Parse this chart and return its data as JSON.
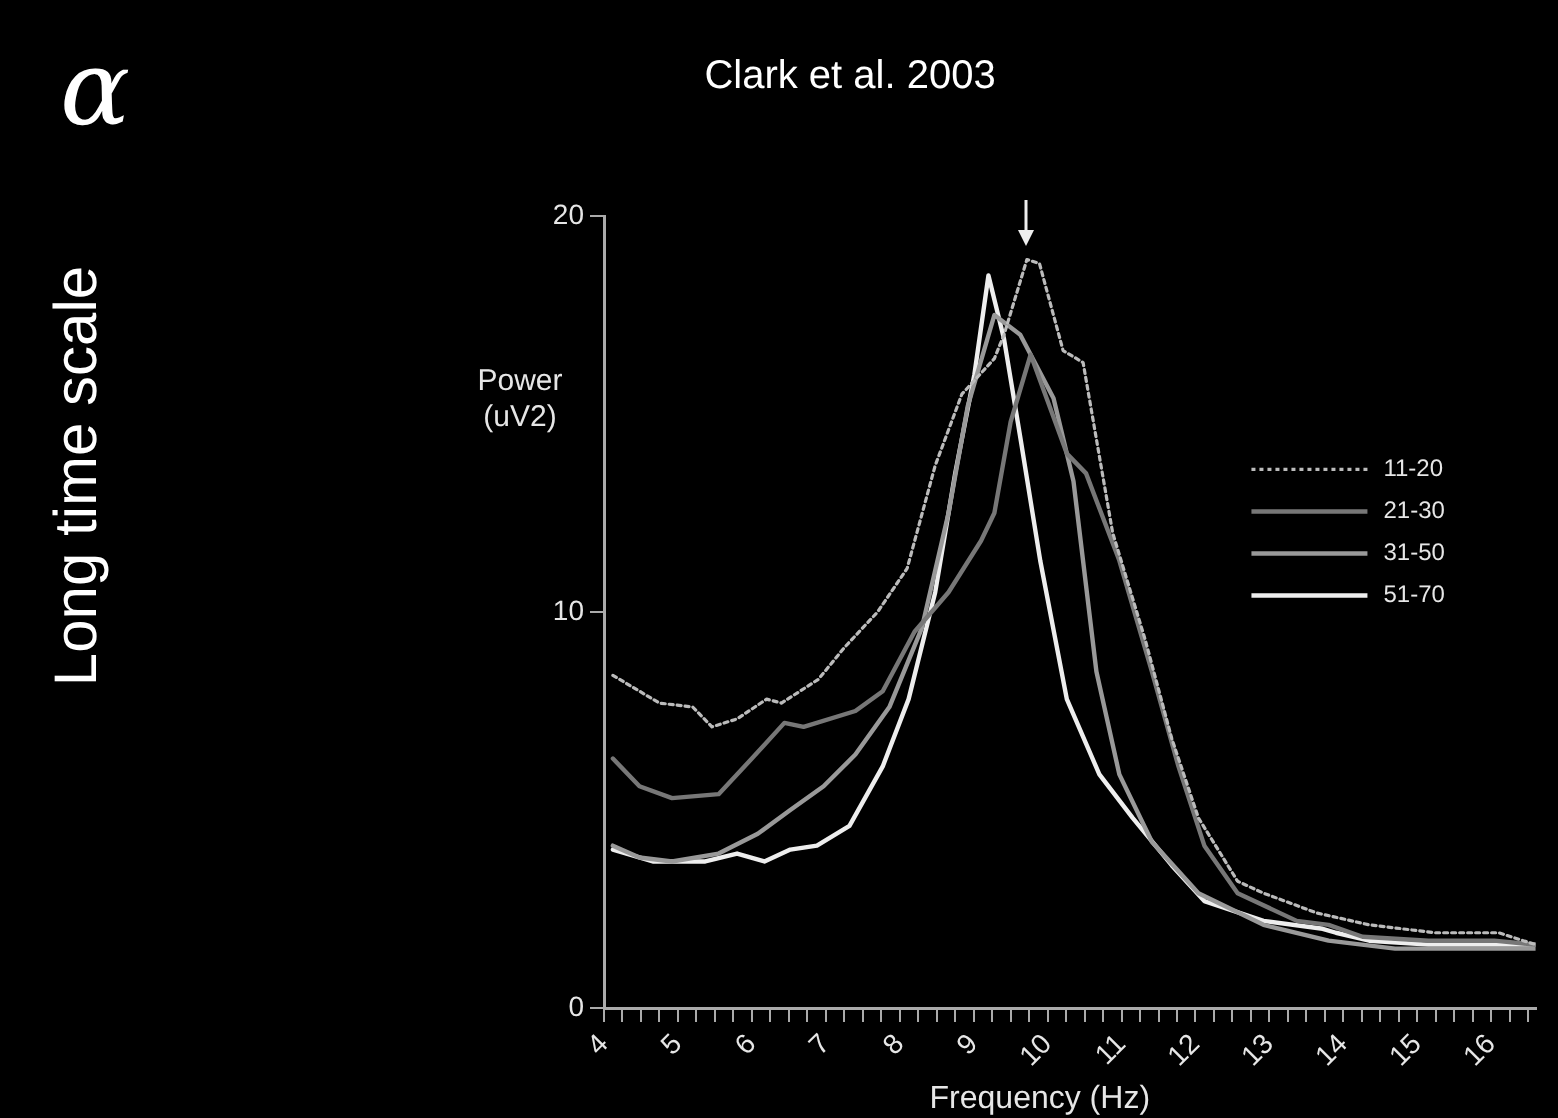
{
  "chart_data": {
    "type": "line",
    "title": "α",
    "xlabel": "Frequency (Hz)",
    "ylabel": "Power\n(uV2)",
    "annotations": [
      "Clark et al. 2003",
      "Long time scale"
    ],
    "xlim": [
      4,
      16.6
    ],
    "ylim": [
      0,
      20
    ],
    "yticks": [
      0,
      10,
      20
    ],
    "xticks": [
      4,
      {
        "value": 4.25,
        "label": null
      },
      {
        "value": 4.5,
        "label": null
      },
      {
        "value": 4.75,
        "label": null
      },
      5,
      {
        "value": 5.25,
        "label": null
      },
      {
        "value": 5.5,
        "label": null
      },
      {
        "value": 5.75,
        "label": null
      },
      6,
      {
        "value": 6.25,
        "label": null
      },
      {
        "value": 6.5,
        "label": null
      },
      {
        "value": 6.75,
        "label": null
      },
      7,
      {
        "value": 7.25,
        "label": null
      },
      {
        "value": 7.5,
        "label": null
      },
      {
        "value": 7.75,
        "label": null
      },
      8,
      {
        "value": 8.25,
        "label": null
      },
      {
        "value": 8.5,
        "label": null
      },
      {
        "value": 8.75,
        "label": null
      },
      9,
      {
        "value": 9.25,
        "label": null
      },
      {
        "value": 9.5,
        "label": null
      },
      {
        "value": 9.75,
        "label": null
      },
      10,
      {
        "value": 10.25,
        "label": null
      },
      {
        "value": 10.5,
        "label": null
      },
      {
        "value": 10.75,
        "label": null
      },
      11,
      {
        "value": 11.25,
        "label": null
      },
      {
        "value": 11.5,
        "label": null
      },
      {
        "value": 11.75,
        "label": null
      },
      12,
      {
        "value": 12.25,
        "label": null
      },
      {
        "value": 12.5,
        "label": null
      },
      {
        "value": 12.75,
        "label": null
      },
      13,
      {
        "value": 13.25,
        "label": null
      },
      {
        "value": 13.5,
        "label": null
      },
      {
        "value": 13.75,
        "label": null
      },
      14,
      {
        "value": 14.25,
        "label": null
      },
      {
        "value": 14.5,
        "label": null
      },
      {
        "value": 14.75,
        "label": null
      },
      15,
      {
        "value": 15.25,
        "label": null
      },
      {
        "value": 15.5,
        "label": null
      },
      {
        "value": 15.75,
        "label": null
      },
      16,
      {
        "value": 16.25,
        "label": null
      },
      {
        "value": 16.5,
        "label": null
      }
    ],
    "grid": false,
    "legend": "top right",
    "marker": "none",
    "series": [
      {
        "name": "11-20",
        "color": "#bbbbbb",
        "line_style": "dotted",
        "x": [
          4.12,
          4.75,
          5.2,
          5.46,
          5.8,
          6.2,
          6.4,
          6.9,
          7.25,
          7.7,
          8.1,
          8.48,
          8.84,
          9.28,
          9.41,
          9.72,
          9.89,
          10.21,
          10.48,
          10.88,
          11.32,
          11.68,
          12.04,
          12.57,
          12.92,
          13.64,
          14.35,
          15.24,
          16.1,
          16.6
        ],
        "values": [
          8.4,
          7.7,
          7.6,
          7.1,
          7.3,
          7.8,
          7.7,
          8.3,
          9.1,
          10,
          11.1,
          13.7,
          15.5,
          16.4,
          17,
          18.9,
          18.8,
          16.6,
          16.3,
          12,
          9.3,
          6.8,
          4.8,
          3.2,
          2.9,
          2.4,
          2.1,
          1.9,
          1.9,
          1.6
        ]
      },
      {
        "name": "21-30",
        "color": "#777777",
        "line_style": "solid",
        "x": [
          4.12,
          4.48,
          4.92,
          5.55,
          6,
          6.44,
          6.7,
          7.4,
          7.77,
          8.2,
          8.66,
          9.1,
          9.28,
          9.5,
          9.77,
          10.26,
          10.52,
          10.97,
          11.41,
          11.77,
          12.12,
          12.57,
          13.37,
          13.8,
          14.26,
          15.15,
          16.04,
          16.6
        ],
        "values": [
          6.3,
          5.6,
          5.3,
          5.4,
          6.3,
          7.2,
          7.1,
          7.5,
          8,
          9.5,
          10.5,
          11.8,
          12.5,
          14.8,
          16.5,
          14,
          13.5,
          11.3,
          8.5,
          6.1,
          4.1,
          2.9,
          2.2,
          2.1,
          1.8,
          1.7,
          1.7,
          1.6
        ]
      },
      {
        "name": "31-50",
        "color": "#999999",
        "line_style": "solid",
        "x": [
          4.12,
          4.48,
          4.92,
          5.55,
          6.08,
          6.52,
          6.97,
          7.4,
          7.86,
          8.3,
          8.66,
          8.92,
          9.28,
          9.63,
          10.08,
          10.35,
          10.66,
          10.97,
          11.41,
          12.04,
          12.92,
          13.8,
          14.7,
          15.6,
          16.6
        ],
        "values": [
          4.1,
          3.8,
          3.7,
          3.9,
          4.4,
          5,
          5.6,
          6.4,
          7.6,
          9.6,
          12.5,
          15.2,
          17.5,
          17,
          15.4,
          13.3,
          8.5,
          5.9,
          4.2,
          2.9,
          2.1,
          1.7,
          1.5,
          1.5,
          1.5
        ]
      },
      {
        "name": "51-70",
        "color": "#eeeeee",
        "line_style": "solid",
        "x": [
          4.12,
          4.66,
          5.37,
          5.8,
          6.17,
          6.52,
          6.88,
          7.32,
          7.77,
          8.12,
          8.48,
          8.75,
          9.01,
          9.2,
          9.41,
          9.64,
          9.9,
          10.26,
          10.7,
          11.15,
          11.68,
          12.12,
          12.92,
          13.72,
          13.9,
          14.35,
          15.15,
          16.04,
          16.6
        ],
        "values": [
          4,
          3.7,
          3.7,
          3.9,
          3.7,
          4,
          4.1,
          4.6,
          6.1,
          7.8,
          10.5,
          13.5,
          16,
          18.5,
          16.9,
          14.3,
          11.3,
          7.8,
          5.9,
          4.8,
          3.6,
          2.7,
          2.2,
          2,
          1.9,
          1.7,
          1.6,
          1.6,
          1.6
        ]
      }
    ]
  }
}
